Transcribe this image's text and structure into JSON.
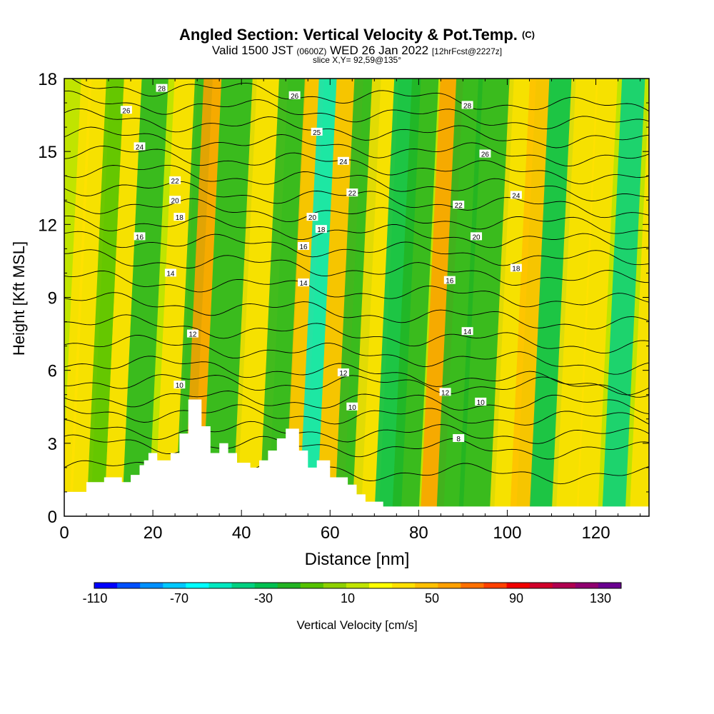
{
  "title": "Angled Section: Vertical Velocity & Pot.Temp.",
  "title_tag": "(C)",
  "subtitle_a": "Valid 1500 JST",
  "subtitle_b": "(0600Z)",
  "subtitle_c": "WED 26 Jan 2022",
  "subtitle_d": "[12hrFcst@2227z]",
  "slice_text": "slice X,Y= 92,59@135°",
  "chart_data": {
    "type": "heatmap",
    "xlabel": "Distance [nm]",
    "ylabel": "Height [Kft MSL]",
    "xlim": [
      0,
      132
    ],
    "ylim": [
      0,
      18
    ],
    "x_ticks": [
      "0",
      "20",
      "40",
      "60",
      "80",
      "100",
      "120"
    ],
    "y_ticks": [
      "0",
      "3",
      "6",
      "9",
      "12",
      "15",
      "18"
    ],
    "colorbar": {
      "label": "Vertical Velocity [cm/s]",
      "tick_labels": [
        "-110",
        "-70",
        "-30",
        "10",
        "50",
        "90",
        "130"
      ],
      "colors": [
        "#0000ff",
        "#0050ff",
        "#0090ff",
        "#00c8ff",
        "#00ffff",
        "#00e8c0",
        "#00d080",
        "#00c050",
        "#22b422",
        "#55c200",
        "#8ed000",
        "#c0e400",
        "#ffff00",
        "#ffe000",
        "#ffc000",
        "#ffa000",
        "#ff7000",
        "#ff4000",
        "#f00000",
        "#d0002a",
        "#b00050",
        "#900070",
        "#6a0090"
      ]
    },
    "series": [
      {
        "values": [
          8,
          10,
          12,
          14,
          16,
          18,
          20,
          22,
          24,
          26,
          28
        ]
      }
    ],
    "terrain": [
      [
        0,
        1
      ],
      [
        5,
        1
      ],
      [
        5,
        1.4
      ],
      [
        9,
        1.4
      ],
      [
        9,
        1.6
      ],
      [
        13,
        1.6
      ],
      [
        13,
        1.4
      ],
      [
        15,
        1.4
      ],
      [
        15,
        1.7
      ],
      [
        17,
        1.7
      ],
      [
        17,
        2.1
      ],
      [
        18,
        2.1
      ],
      [
        18,
        2.3
      ],
      [
        19,
        2.3
      ],
      [
        19,
        2.6
      ],
      [
        21,
        2.6
      ],
      [
        21,
        2.3
      ],
      [
        24,
        2.3
      ],
      [
        24,
        2.6
      ],
      [
        26,
        2.6
      ],
      [
        26,
        3.4
      ],
      [
        28,
        3.4
      ],
      [
        28,
        4.8
      ],
      [
        31,
        4.8
      ],
      [
        31,
        3.7
      ],
      [
        33,
        3.7
      ],
      [
        33,
        2.6
      ],
      [
        35,
        2.6
      ],
      [
        35,
        3
      ],
      [
        37,
        3
      ],
      [
        37,
        2.6
      ],
      [
        39,
        2.6
      ],
      [
        39,
        2.2
      ],
      [
        42,
        2.2
      ],
      [
        42,
        2
      ],
      [
        44,
        2
      ],
      [
        44,
        2.3
      ],
      [
        46,
        2.3
      ],
      [
        46,
        2.7
      ],
      [
        48,
        2.7
      ],
      [
        48,
        3.2
      ],
      [
        50,
        3.2
      ],
      [
        50,
        3.6
      ],
      [
        53,
        3.6
      ],
      [
        53,
        2.7
      ],
      [
        55,
        2.7
      ],
      [
        55,
        2
      ],
      [
        57,
        2
      ],
      [
        57,
        2.3
      ],
      [
        60,
        2.3
      ],
      [
        60,
        1.6
      ],
      [
        64,
        1.6
      ],
      [
        64,
        1.3
      ],
      [
        66,
        1.3
      ],
      [
        66,
        0.9
      ],
      [
        68,
        0.9
      ],
      [
        68,
        0.6
      ],
      [
        72,
        0.6
      ],
      [
        72,
        0.4
      ],
      [
        132,
        0.4
      ],
      [
        132,
        0
      ],
      [
        0,
        0
      ]
    ],
    "contour_labels": [
      {
        "x": 26,
        "y": 5.4,
        "v": "10"
      },
      {
        "x": 29,
        "y": 7.5,
        "v": "12"
      },
      {
        "x": 24,
        "y": 10,
        "v": "14"
      },
      {
        "x": 17,
        "y": 11.5,
        "v": "16"
      },
      {
        "x": 26,
        "y": 12.3,
        "v": "18"
      },
      {
        "x": 25,
        "y": 13,
        "v": "20"
      },
      {
        "x": 25,
        "y": 13.8,
        "v": "22"
      },
      {
        "x": 17,
        "y": 15.2,
        "v": "24"
      },
      {
        "x": 14,
        "y": 16.7,
        "v": "26"
      },
      {
        "x": 22,
        "y": 17.6,
        "v": "28"
      },
      {
        "x": 52,
        "y": 17.3,
        "v": "26"
      },
      {
        "x": 57,
        "y": 15.8,
        "v": "25"
      },
      {
        "x": 63,
        "y": 14.6,
        "v": "24"
      },
      {
        "x": 65,
        "y": 13.3,
        "v": "22"
      },
      {
        "x": 56,
        "y": 12.3,
        "v": "20"
      },
      {
        "x": 58,
        "y": 11.8,
        "v": "18"
      },
      {
        "x": 54,
        "y": 11.1,
        "v": "16"
      },
      {
        "x": 54,
        "y": 9.6,
        "v": "14"
      },
      {
        "x": 63,
        "y": 5.9,
        "v": "12"
      },
      {
        "x": 65,
        "y": 4.5,
        "v": "10"
      },
      {
        "x": 91,
        "y": 16.9,
        "v": "28"
      },
      {
        "x": 95,
        "y": 14.9,
        "v": "26"
      },
      {
        "x": 102,
        "y": 13.2,
        "v": "24"
      },
      {
        "x": 89,
        "y": 12.8,
        "v": "22"
      },
      {
        "x": 93,
        "y": 11.5,
        "v": "20"
      },
      {
        "x": 102,
        "y": 10.2,
        "v": "18"
      },
      {
        "x": 87,
        "y": 9.7,
        "v": "16"
      },
      {
        "x": 91,
        "y": 7.6,
        "v": "14"
      },
      {
        "x": 86,
        "y": 5.1,
        "v": "12"
      },
      {
        "x": 94,
        "y": 4.7,
        "v": "10"
      },
      {
        "x": 89,
        "y": 3.2,
        "v": "8"
      }
    ]
  }
}
